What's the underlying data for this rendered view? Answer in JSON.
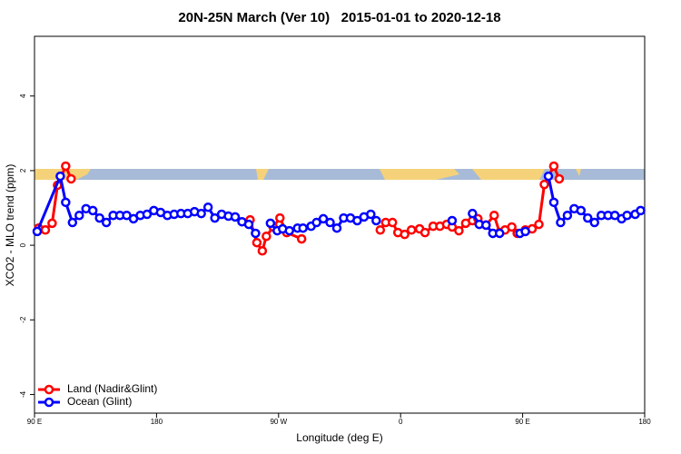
{
  "chart_data": {
    "type": "line",
    "title": "20N-25N March (Ver 10)   2015-01-01 to 2020-12-18",
    "x_label": "Longitude (deg E)",
    "y_label": "XCO2 - MLO trend (ppm)",
    "xlim": [
      90,
      540
    ],
    "xticks": [
      {
        "value": 90,
        "label": "90 E"
      },
      180,
      {
        "value": 270,
        "label": "90 W"
      },
      {
        "value": 360,
        "label": "0"
      },
      {
        "value": 450,
        "label": "90 E"
      },
      {
        "value": 540,
        "label": "180"
      }
    ],
    "ylim": [
      -4.5,
      5.6
    ],
    "yticks": [
      -4,
      -2,
      0,
      2,
      4
    ],
    "legend": "bottom-left",
    "series": [
      {
        "name": "Land (Nadir&Glint)",
        "color": "#ff0000",
        "x": [
          93,
          98,
          103,
          107,
          113,
          117,
          null,
          249,
          254,
          258,
          261,
          266,
          271,
          276,
          287,
          null,
          345,
          349,
          354,
          358,
          363,
          368,
          374,
          378,
          384,
          389,
          394,
          398,
          403,
          408,
          413,
          417,
          423,
          429,
          433,
          437,
          442,
          446,
          452,
          457,
          462,
          466,
          473,
          477
        ],
        "values": [
          0.46,
          0.41,
          0.59,
          1.61,
          2.12,
          1.78,
          null,
          0.68,
          0.07,
          -0.15,
          0.24,
          0.49,
          0.73,
          0.34,
          0.17,
          null,
          0.41,
          0.61,
          0.61,
          0.34,
          0.29,
          0.41,
          0.44,
          0.34,
          0.51,
          0.51,
          0.56,
          0.49,
          0.39,
          0.59,
          0.66,
          0.71,
          0.54,
          0.8,
          0.34,
          0.41,
          0.49,
          0.32,
          0.41,
          0.44,
          0.56,
          1.63,
          2.12,
          1.78
        ]
      },
      {
        "name": "Ocean (Glint)",
        "color": "#0000ff",
        "x": [
          92,
          109,
          113,
          118,
          123,
          128,
          133,
          138,
          143,
          148,
          153,
          158,
          163,
          168,
          173,
          178,
          183,
          188,
          193,
          198,
          203,
          208,
          213,
          218,
          223,
          228,
          233,
          238,
          243,
          248,
          253,
          null,
          264,
          269,
          273,
          278,
          284,
          288,
          294,
          298,
          303,
          308,
          313,
          318,
          323,
          328,
          333,
          338,
          342,
          null,
          398,
          null,
          413,
          418,
          423,
          428,
          433,
          null,
          448,
          452,
          null,
          469,
          473,
          478,
          483,
          488,
          493,
          498,
          503,
          508,
          513,
          518,
          523,
          527,
          533,
          537
        ],
        "values": [
          0.37,
          1.85,
          1.15,
          0.61,
          0.8,
          0.98,
          0.93,
          0.73,
          0.61,
          0.8,
          0.8,
          0.8,
          0.71,
          0.8,
          0.83,
          0.93,
          0.88,
          0.8,
          0.83,
          0.85,
          0.85,
          0.9,
          0.85,
          1.02,
          0.73,
          0.83,
          0.78,
          0.76,
          0.63,
          0.56,
          0.32,
          null,
          0.59,
          0.39,
          0.44,
          0.39,
          0.46,
          0.46,
          0.51,
          0.61,
          0.71,
          0.61,
          0.46,
          0.73,
          0.73,
          0.66,
          0.76,
          0.83,
          0.66,
          null,
          0.66,
          null,
          0.85,
          0.56,
          0.54,
          0.32,
          0.32,
          null,
          0.32,
          0.37,
          null,
          1.85,
          1.15,
          0.61,
          0.8,
          0.98,
          0.93,
          0.73,
          0.61,
          0.8,
          0.8,
          0.8,
          0.71,
          0.8,
          0.83,
          0.93
        ]
      }
    ]
  }
}
